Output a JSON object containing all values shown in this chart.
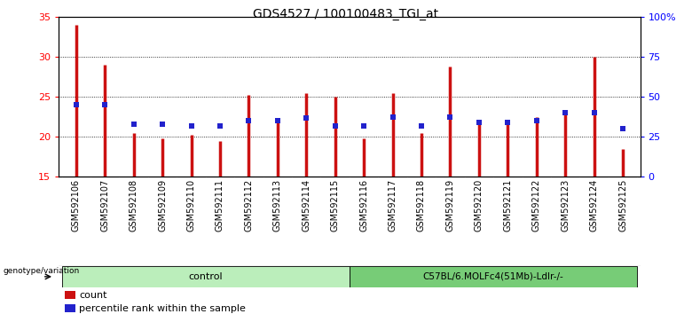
{
  "title": "GDS4527 / 100100483_TGI_at",
  "samples": [
    "GSM592106",
    "GSM592107",
    "GSM592108",
    "GSM592109",
    "GSM592110",
    "GSM592111",
    "GSM592112",
    "GSM592113",
    "GSM592114",
    "GSM592115",
    "GSM592116",
    "GSM592117",
    "GSM592118",
    "GSM592119",
    "GSM592120",
    "GSM592121",
    "GSM592122",
    "GSM592123",
    "GSM592124",
    "GSM592125"
  ],
  "count_values": [
    34.0,
    29.0,
    20.5,
    19.8,
    20.2,
    19.5,
    25.2,
    22.0,
    25.5,
    25.0,
    19.8,
    25.5,
    20.5,
    28.8,
    22.0,
    22.0,
    22.5,
    23.0,
    30.0,
    18.5
  ],
  "percentile_values_pct": [
    45.0,
    45.0,
    33.0,
    33.0,
    32.0,
    32.0,
    35.0,
    35.0,
    36.5,
    32.0,
    32.0,
    37.5,
    32.0,
    37.5,
    34.0,
    34.0,
    35.0,
    40.0,
    40.0,
    30.0
  ],
  "control_count": 10,
  "treatment_count": 10,
  "control_label": "control",
  "treatment_label": "C57BL/6.MOLFc4(51Mb)-Ldlr-/-",
  "genotype_label": "genotype/variation",
  "ylim_left": [
    15,
    35
  ],
  "ylim_right": [
    0,
    100
  ],
  "yticks_left": [
    15,
    20,
    25,
    30,
    35
  ],
  "yticks_right": [
    0,
    25,
    50,
    75,
    100
  ],
  "ytick_labels_right": [
    "0",
    "25",
    "50",
    "75",
    "100%"
  ],
  "bar_color": "#CC1111",
  "dot_color": "#2222CC",
  "bar_width": 0.15,
  "plot_bg": "#FFFFFF",
  "xtick_bg": "#CCCCCC",
  "control_bg": "#BBEEBB",
  "treatment_bg": "#77CC77",
  "legend_count_label": "count",
  "legend_pct_label": "percentile rank within the sample"
}
